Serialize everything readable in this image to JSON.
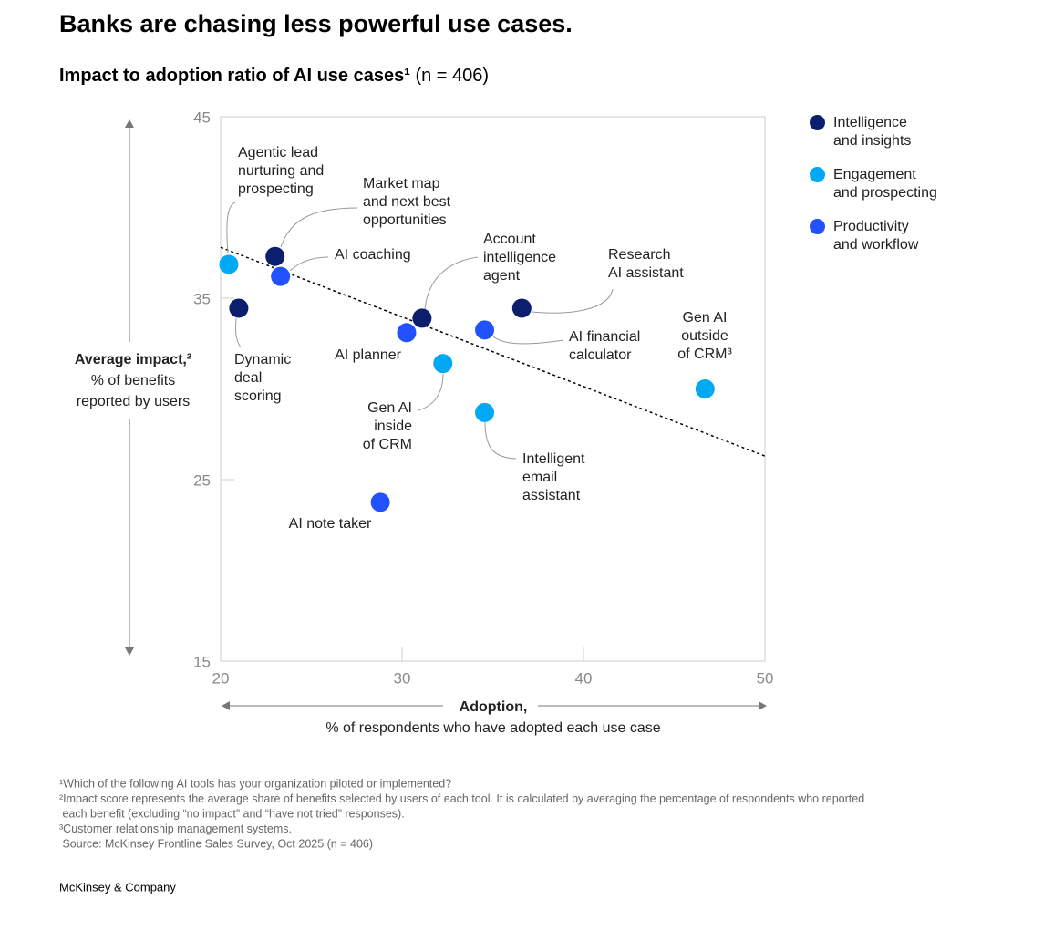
{
  "chart_data": {
    "type": "scatter",
    "title": "Banks are chasing less powerful use cases.",
    "subtitle": {
      "main": "Impact to adoption ratio of AI use cases¹",
      "note": "(n = 406)"
    },
    "y_label": {
      "main": "Average impact,²",
      "lines": [
        "% of benefits",
        "reported by users"
      ]
    },
    "x_label": {
      "main": "Adoption,",
      "sub": "% of respondents who have adopted each use case"
    },
    "xlim": [
      20,
      50
    ],
    "xticks": [
      20,
      30,
      40,
      50
    ],
    "ylim": [
      15,
      45
    ],
    "yticks": [
      15,
      25,
      35,
      45
    ],
    "trend_line": {
      "x": [
        20,
        50
      ],
      "y": [
        37.8,
        26.3
      ]
    },
    "series": [
      {
        "name": "Intelligence and insights",
        "color": "#0b1f6e",
        "x": [
          23.0,
          21.0,
          31.1,
          36.6
        ],
        "values": [
          37.3,
          34.45,
          33.9,
          34.45
        ],
        "labels": [
          [
            "Market map",
            "and next best",
            "opportunities"
          ],
          [
            "Dynamic",
            "deal",
            "scoring"
          ],
          [
            "Account",
            "intelligence",
            "agent"
          ],
          [
            "Research",
            "AI assistant"
          ]
        ]
      },
      {
        "name": "Engagement and prospecting",
        "color": "#00a9f4",
        "x": [
          20.45,
          32.25,
          34.55,
          46.7
        ],
        "values": [
          36.86,
          31.4,
          28.7,
          30.0
        ],
        "labels": [
          [
            "Agentic lead",
            "nurturing and",
            "prospecting"
          ],
          [
            "Gen AI",
            "inside",
            "of CRM"
          ],
          [
            "Intelligent",
            "email",
            "assistant"
          ],
          [
            "Gen AI",
            "outside",
            "of CRM³"
          ]
        ]
      },
      {
        "name": "Productivity and workflow",
        "color": "#2251ff",
        "x": [
          23.3,
          30.25,
          34.55,
          28.8
        ],
        "values": [
          36.2,
          33.1,
          33.25,
          23.75
        ],
        "labels": [
          [
            "AI coaching"
          ],
          [
            "AI planner"
          ],
          [
            "AI financial",
            "calculator"
          ],
          [
            "AI note taker"
          ]
        ]
      }
    ]
  },
  "footnotes": [
    "¹Which of the following AI tools has your organization piloted or implemented?",
    "²Impact score represents the average share of benefits selected by users of each tool. It is calculated by averaging the percentage of respondents who reported",
    " each benefit (excluding “no impact” and “have not tried” responses).",
    "³Customer relationship management systems.",
    " Source: McKinsey Frontline Sales Survey, Oct 2025 (n = 406)"
  ],
  "brand": "McKinsey & Company"
}
